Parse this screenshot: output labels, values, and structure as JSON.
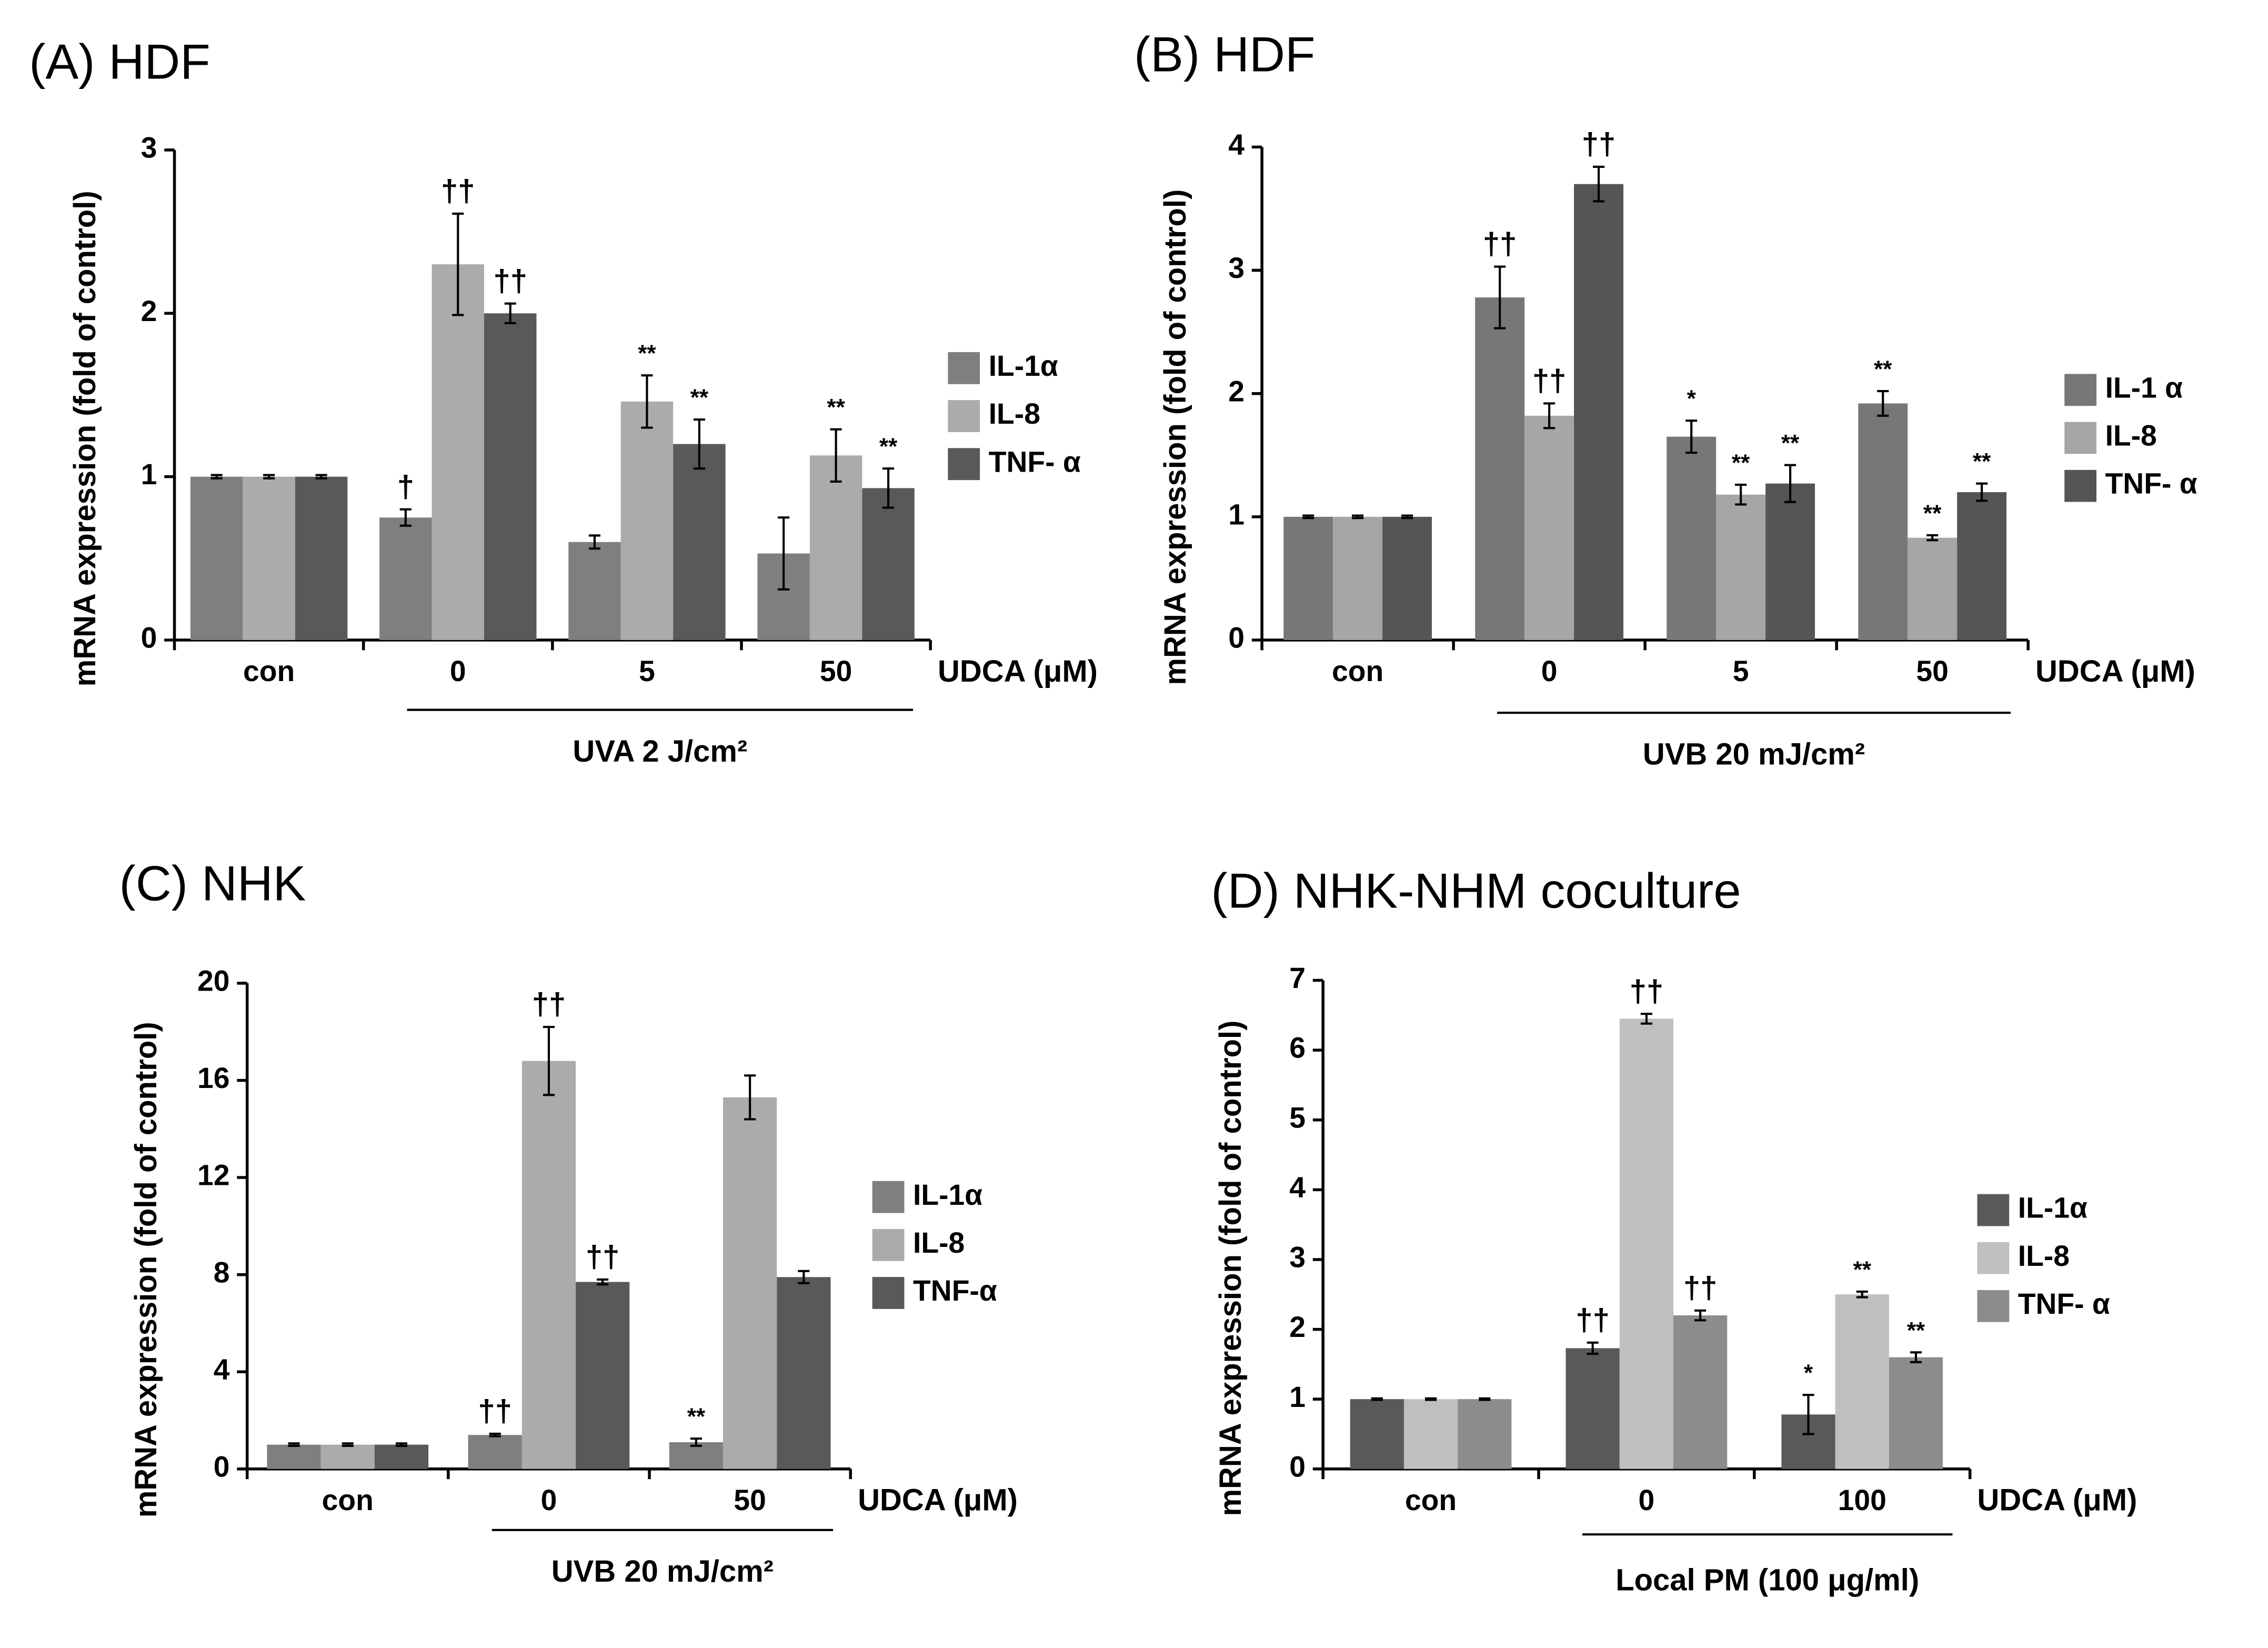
{
  "chart_data": [
    {
      "type": "bar",
      "title": "(A) HDF",
      "ylabel": "mRNA expression (fold of control)",
      "xlabel": "UDCA (μM)",
      "group_label": "UVA 2 J/cm²",
      "categories": [
        "con",
        "0",
        "5",
        "50"
      ],
      "ylim": [
        0,
        3
      ],
      "yticks": [
        0,
        1,
        2,
        3
      ],
      "series": [
        {
          "name": "IL-1α",
          "color": "#7f7f7f",
          "values": [
            1,
            0.75,
            0.6,
            0.53
          ],
          "errors": [
            0.01,
            0.05,
            0.04,
            0.22
          ],
          "annotations": [
            null,
            "†",
            null,
            null
          ]
        },
        {
          "name": "IL-8",
          "color": "#ababab",
          "values": [
            1,
            2.3,
            1.46,
            1.13
          ],
          "errors": [
            0.01,
            0.31,
            0.16,
            0.16
          ],
          "annotations": [
            null,
            "††",
            "**",
            "**"
          ]
        },
        {
          "name": "TNF- α",
          "color": "#595959",
          "values": [
            1,
            2.0,
            1.2,
            0.93
          ],
          "errors": [
            0.01,
            0.06,
            0.15,
            0.12
          ],
          "annotations": [
            null,
            "††",
            "**",
            "**"
          ]
        }
      ]
    },
    {
      "type": "bar",
      "title": "(B) HDF",
      "ylabel": "mRNA expression (fold of control)",
      "xlabel": "UDCA (μM)",
      "group_label": "UVB 20 mJ/cm²",
      "categories": [
        "con",
        "0",
        "5",
        "50"
      ],
      "ylim": [
        0,
        4
      ],
      "yticks": [
        0,
        1,
        2,
        3,
        4
      ],
      "series": [
        {
          "name": "IL-1 α",
          "color": "#777777",
          "values": [
            1,
            2.78,
            1.65,
            1.92
          ],
          "errors": [
            0.01,
            0.25,
            0.13,
            0.1
          ],
          "annotations": [
            null,
            "††",
            "*",
            "**"
          ]
        },
        {
          "name": "IL-8",
          "color": "#a6a6a6",
          "values": [
            1,
            1.82,
            1.18,
            0.83
          ],
          "errors": [
            0.01,
            0.1,
            0.08,
            0.02
          ],
          "annotations": [
            null,
            "††",
            "**",
            "**"
          ]
        },
        {
          "name": "TNF- α",
          "color": "#555555",
          "values": [
            1,
            3.7,
            1.27,
            1.2
          ],
          "errors": [
            0.01,
            0.14,
            0.15,
            0.07
          ],
          "annotations": [
            null,
            "††",
            "**",
            "**"
          ]
        }
      ]
    },
    {
      "type": "bar",
      "title": "(C) NHK",
      "ylabel": "mRNA expression (fold of control)",
      "xlabel": "UDCA (μM)",
      "group_label": "UVB 20 mJ/cm²",
      "categories": [
        "con",
        "0",
        "50"
      ],
      "ylim": [
        0,
        20
      ],
      "yticks": [
        0,
        4,
        8,
        12,
        16,
        20
      ],
      "series": [
        {
          "name": "IL-1α",
          "color": "#7f7f7f",
          "values": [
            1,
            1.4,
            1.1
          ],
          "errors": [
            0.05,
            0.05,
            0.15
          ],
          "annotations": [
            null,
            "††",
            "**"
          ]
        },
        {
          "name": "IL-8",
          "color": "#ababab",
          "values": [
            1,
            16.8,
            15.3
          ],
          "errors": [
            0.05,
            1.4,
            0.9
          ],
          "annotations": [
            null,
            "††",
            null
          ]
        },
        {
          "name": "TNF-α",
          "color": "#595959",
          "values": [
            1,
            7.7,
            7.9
          ],
          "errors": [
            0.05,
            0.1,
            0.25
          ],
          "annotations": [
            null,
            "††",
            null
          ]
        }
      ]
    },
    {
      "type": "bar",
      "title": "(D) NHK-NHM coculture",
      "ylabel": "mRNA expression (fold of control)",
      "xlabel": "UDCA (μM)",
      "group_label": "Local PM (100 μg/ml)",
      "categories": [
        "con",
        "0",
        "100"
      ],
      "ylim": [
        0,
        7
      ],
      "yticks": [
        0,
        1,
        2,
        3,
        4,
        5,
        6,
        7
      ],
      "series": [
        {
          "name": "IL-1α",
          "color": "#595959",
          "values": [
            1,
            1.73,
            0.78
          ],
          "errors": [
            0.01,
            0.08,
            0.28
          ],
          "annotations": [
            null,
            "††",
            "*"
          ]
        },
        {
          "name": "IL-8",
          "color": "#bfbfbf",
          "values": [
            1,
            6.45,
            2.5
          ],
          "errors": [
            0.01,
            0.07,
            0.04
          ],
          "annotations": [
            null,
            "††",
            "**"
          ]
        },
        {
          "name": "TNF- α",
          "color": "#8c8c8c",
          "values": [
            1,
            2.2,
            1.6
          ],
          "errors": [
            0.01,
            0.07,
            0.07
          ],
          "annotations": [
            null,
            "††",
            "**"
          ]
        }
      ]
    }
  ]
}
